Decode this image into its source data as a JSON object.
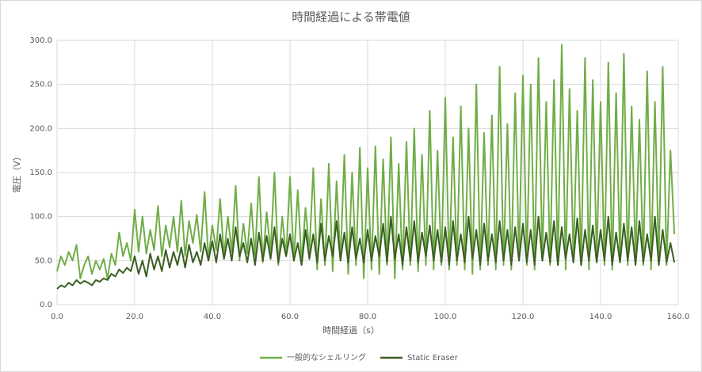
{
  "chart_data": {
    "type": "line",
    "title": "時間経過による帯電値",
    "x_label": "時間経過（s）",
    "y_label": "電圧（V）",
    "x": [
      0,
      1,
      2,
      3,
      4,
      5,
      6,
      7,
      8,
      9,
      10,
      11,
      12,
      13,
      14,
      15,
      16,
      17,
      18,
      19,
      20,
      21,
      22,
      23,
      24,
      25,
      26,
      27,
      28,
      29,
      30,
      31,
      32,
      33,
      34,
      35,
      36,
      37,
      38,
      39,
      40,
      41,
      42,
      43,
      44,
      45,
      46,
      47,
      48,
      49,
      50,
      51,
      52,
      53,
      54,
      55,
      56,
      57,
      58,
      59,
      60,
      61,
      62,
      63,
      64,
      65,
      66,
      67,
      68,
      69,
      70,
      71,
      72,
      73,
      74,
      75,
      76,
      77,
      78,
      79,
      80,
      81,
      82,
      83,
      84,
      85,
      86,
      87,
      88,
      89,
      90,
      91,
      92,
      93,
      94,
      95,
      96,
      97,
      98,
      99,
      100,
      101,
      102,
      103,
      104,
      105,
      106,
      107,
      108,
      109,
      110,
      111,
      112,
      113,
      114,
      115,
      116,
      117,
      118,
      119,
      120,
      121,
      122,
      123,
      124,
      125,
      126,
      127,
      128,
      129,
      130,
      131,
      132,
      133,
      134,
      135,
      136,
      137,
      138,
      139,
      140,
      141,
      142,
      143,
      144,
      145,
      146,
      147,
      148,
      149,
      150,
      151,
      152,
      153,
      154,
      155,
      156,
      157,
      158,
      159
    ],
    "series": [
      {
        "name": "一般的なシェルリング",
        "color": "#70ad47",
        "values": [
          38,
          55,
          45,
          60,
          50,
          68,
          30,
          45,
          55,
          35,
          50,
          40,
          52,
          30,
          58,
          45,
          82,
          55,
          70,
          50,
          108,
          60,
          100,
          58,
          85,
          62,
          112,
          55,
          90,
          65,
          100,
          60,
          118,
          55,
          95,
          70,
          102,
          60,
          128,
          52,
          90,
          62,
          120,
          55,
          100,
          60,
          135,
          50,
          92,
          58,
          115,
          55,
          145,
          48,
          105,
          60,
          150,
          45,
          100,
          55,
          145,
          50,
          130,
          48,
          110,
          60,
          155,
          40,
          120,
          45,
          160,
          38,
          140,
          50,
          170,
          35,
          150,
          45,
          178,
          30,
          155,
          40,
          180,
          35,
          165,
          45,
          190,
          30,
          160,
          40,
          185,
          45,
          200,
          38,
          170,
          45,
          220,
          40,
          175,
          45,
          235,
          40,
          190,
          45,
          225,
          40,
          200,
          35,
          250,
          40,
          195,
          45,
          215,
          40,
          270,
          45,
          205,
          40,
          240,
          50,
          260,
          45,
          250,
          40,
          280,
          50,
          230,
          45,
          255,
          45,
          295,
          40,
          245,
          50,
          220,
          45,
          280,
          40,
          255,
          50,
          230,
          45,
          275,
          40,
          240,
          50,
          285,
          45,
          225,
          50,
          210,
          45,
          265,
          40,
          230,
          50,
          270,
          45,
          175,
          80
        ]
      },
      {
        "name": "Static Eraser",
        "color": "#3b5f22",
        "values": [
          18,
          22,
          20,
          25,
          22,
          28,
          24,
          27,
          25,
          22,
          28,
          26,
          30,
          28,
          35,
          32,
          40,
          36,
          42,
          38,
          55,
          35,
          50,
          32,
          58,
          40,
          55,
          38,
          62,
          42,
          60,
          45,
          65,
          42,
          68,
          48,
          60,
          45,
          70,
          50,
          72,
          48,
          80,
          52,
          75,
          50,
          88,
          55,
          70,
          48,
          75,
          45,
          82,
          50,
          78,
          52,
          88,
          48,
          75,
          55,
          80,
          50,
          70,
          45,
          85,
          52,
          80,
          48,
          92,
          50,
          78,
          55,
          95,
          50,
          82,
          48,
          88,
          52,
          75,
          48,
          85,
          50,
          78,
          55,
          92,
          48,
          100,
          52,
          80,
          45,
          88,
          50,
          95,
          48,
          82,
          55,
          90,
          50,
          85,
          48,
          88,
          45,
          95,
          50,
          80,
          48,
          100,
          52,
          85,
          45,
          92,
          50,
          80,
          48,
          95,
          50,
          85,
          45,
          88,
          50,
          92,
          48,
          85,
          45,
          100,
          50,
          82,
          48,
          95,
          45,
          88,
          52,
          80,
          48,
          98,
          45,
          85,
          50,
          90,
          48,
          85,
          50,
          100,
          45,
          82,
          48,
          92,
          50,
          88,
          45,
          95,
          48,
          80,
          50,
          100,
          45,
          85,
          48,
          70,
          48
        ]
      }
    ],
    "xlim": [
      0,
      160
    ],
    "ylim": [
      0,
      300
    ],
    "xticks": [
      {
        "value": 0,
        "label": "0.0"
      },
      {
        "value": 20,
        "label": "20.0"
      },
      {
        "value": 40,
        "label": "40.0"
      },
      {
        "value": 60,
        "label": "60.0"
      },
      {
        "value": 80,
        "label": "80.0"
      },
      {
        "value": 100,
        "label": "100.0"
      },
      {
        "value": 120,
        "label": "120.0"
      },
      {
        "value": 140,
        "label": "140.0"
      },
      {
        "value": 160,
        "label": "160.0"
      }
    ],
    "yticks": [
      {
        "value": 0,
        "label": "0.0"
      },
      {
        "value": 50,
        "label": "50.0"
      },
      {
        "value": 100,
        "label": "100.0"
      },
      {
        "value": 150,
        "label": "150.0"
      },
      {
        "value": 200,
        "label": "200.0"
      },
      {
        "value": 250,
        "label": "250.0"
      },
      {
        "value": 300,
        "label": "300.0"
      }
    ],
    "grid": true
  }
}
